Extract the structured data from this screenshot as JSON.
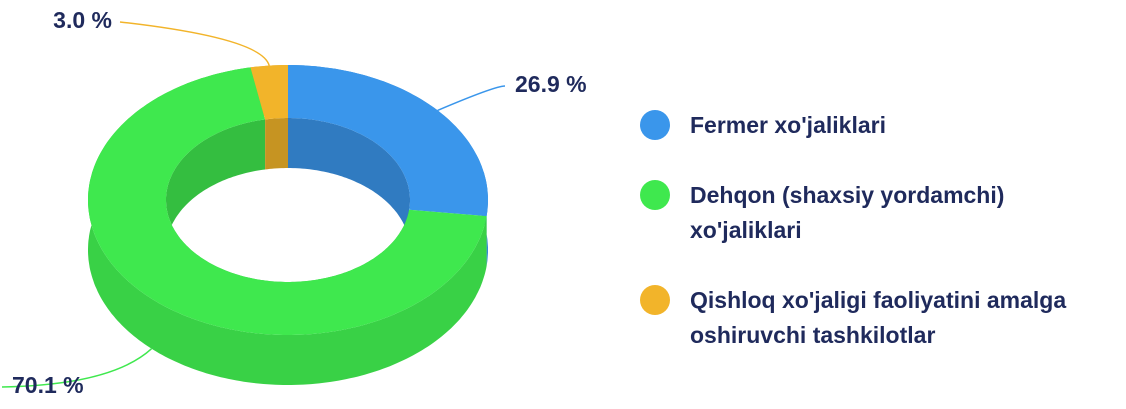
{
  "chart_data": {
    "type": "pie",
    "donut": true,
    "categories": [
      "Fermer xo'jaliklari",
      "Dehqon (shaxsiy yordamchi) xo'jaliklari",
      "Qishloq xo'jaligi faoliyatini amalga oshiruvchi tashkilotlar"
    ],
    "values": [
      26.9,
      70.1,
      3.0
    ],
    "value_labels": [
      "26.9 %",
      "70.1 %",
      "3.0 %"
    ],
    "colors": [
      "#3a96eb",
      "#3fe84e",
      "#f2b42a"
    ],
    "legend": "right"
  }
}
